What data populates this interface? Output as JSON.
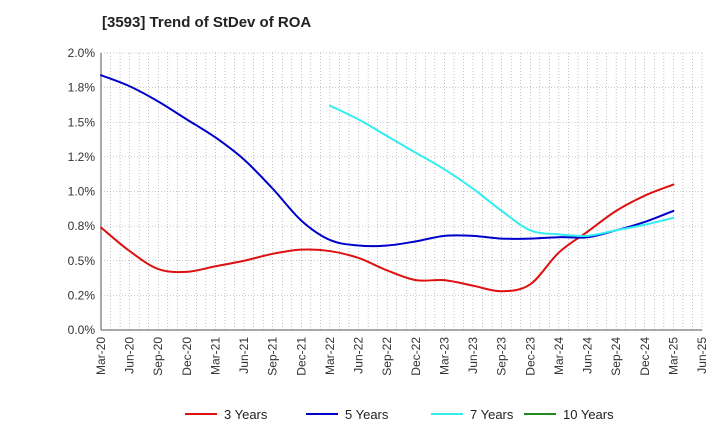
{
  "chart_data": {
    "type": "line",
    "title": "[3593]  Trend of StDev of ROA",
    "xlabel": "",
    "ylabel": "",
    "x_ticks": [
      "Mar-20",
      "Jun-20",
      "Sep-20",
      "Dec-20",
      "Mar-21",
      "Jun-21",
      "Sep-21",
      "Dec-21",
      "Mar-22",
      "Jun-22",
      "Sep-22",
      "Dec-22",
      "Mar-23",
      "Jun-23",
      "Sep-23",
      "Dec-23",
      "Mar-24",
      "Jun-24",
      "Sep-24",
      "Dec-24",
      "Mar-25",
      "Jun-25"
    ],
    "y_ticks": [
      "0.0%",
      "0.2%",
      "0.5%",
      "0.8%",
      "1.0%",
      "1.2%",
      "1.5%",
      "1.8%",
      "2.0%"
    ],
    "ylim": [
      0,
      2.0
    ],
    "grid": "vertical-dotted",
    "legend_position": "bottom",
    "series": [
      {
        "name": "3 Years",
        "color": "#dd1111",
        "x": [
          "Mar-20",
          "Jun-20",
          "Sep-20",
          "Dec-20",
          "Mar-21",
          "Jun-21",
          "Sep-21",
          "Dec-21",
          "Mar-22",
          "Jun-22",
          "Sep-22",
          "Dec-22",
          "Mar-23",
          "Jun-23",
          "Sep-23",
          "Dec-23",
          "Mar-24",
          "Jun-24",
          "Sep-24",
          "Dec-24",
          "Mar-25"
        ],
        "values": [
          0.74,
          0.57,
          0.44,
          0.42,
          0.46,
          0.5,
          0.55,
          0.58,
          0.57,
          0.52,
          0.43,
          0.36,
          0.36,
          0.32,
          0.28,
          0.33,
          0.56,
          0.71,
          0.86,
          0.97,
          1.05
        ]
      },
      {
        "name": "5 Years",
        "color": "#0000cc",
        "x": [
          "Mar-20",
          "Jun-20",
          "Sep-20",
          "Dec-20",
          "Mar-21",
          "Jun-21",
          "Sep-21",
          "Dec-21",
          "Mar-22",
          "Jun-22",
          "Sep-22",
          "Dec-22",
          "Mar-23",
          "Jun-23",
          "Sep-23",
          "Dec-23",
          "Mar-24",
          "Jun-24",
          "Sep-24",
          "Dec-24",
          "Mar-25"
        ],
        "values": [
          1.84,
          1.76,
          1.65,
          1.52,
          1.39,
          1.23,
          1.02,
          0.79,
          0.65,
          0.61,
          0.61,
          0.64,
          0.68,
          0.68,
          0.66,
          0.66,
          0.67,
          0.67,
          0.72,
          0.78,
          0.86
        ]
      },
      {
        "name": "7 Years",
        "color": "#33eeee",
        "x": [
          "Mar-22",
          "Jun-22",
          "Sep-22",
          "Dec-22",
          "Mar-23",
          "Jun-23",
          "Sep-23",
          "Dec-23",
          "Mar-24",
          "Jun-24",
          "Sep-24",
          "Dec-24",
          "Mar-25"
        ],
        "values": [
          1.62,
          1.52,
          1.4,
          1.28,
          1.16,
          1.02,
          0.86,
          0.72,
          0.69,
          0.68,
          0.72,
          0.76,
          0.81
        ]
      },
      {
        "name": "10 Years",
        "color": "#228822",
        "x": [],
        "values": []
      }
    ]
  }
}
